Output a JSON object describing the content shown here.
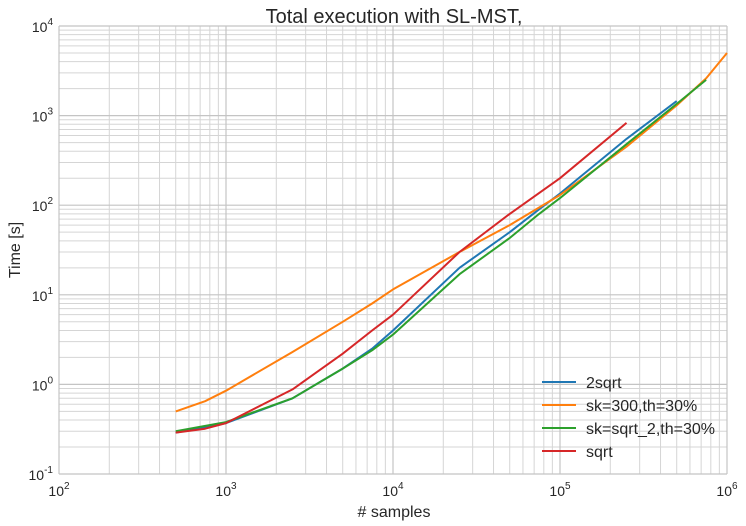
{
  "chart_data": {
    "type": "line",
    "title": "Total execution with SL-MST,",
    "xlabel": "# samples",
    "ylabel": "Time [s]",
    "xscale": "log",
    "yscale": "log",
    "xlim": [
      100,
      1000000
    ],
    "ylim": [
      0.1,
      10000
    ],
    "grid": true,
    "legend_position": "bottom-right",
    "x_ticks": [
      {
        "base": "10",
        "exp": "2",
        "value": 100
      },
      {
        "base": "10",
        "exp": "3",
        "value": 1000
      },
      {
        "base": "10",
        "exp": "4",
        "value": 10000
      },
      {
        "base": "10",
        "exp": "5",
        "value": 100000
      },
      {
        "base": "10",
        "exp": "6",
        "value": 1000000
      }
    ],
    "y_ticks": [
      {
        "base": "10",
        "exp": "-1",
        "value": 0.1
      },
      {
        "base": "10",
        "exp": "0",
        "value": 1
      },
      {
        "base": "10",
        "exp": "1",
        "value": 10
      },
      {
        "base": "10",
        "exp": "2",
        "value": 100
      },
      {
        "base": "10",
        "exp": "3",
        "value": 1000
      },
      {
        "base": "10",
        "exp": "4",
        "value": 10000
      }
    ],
    "series": [
      {
        "name": "2sqrt",
        "color": "#1f77b4",
        "x": [
          500,
          1000,
          2500,
          5000,
          7500,
          10000,
          25000,
          50000,
          75000,
          100000,
          250000,
          500000
        ],
        "y": [
          0.29,
          0.37,
          0.7,
          1.5,
          2.5,
          4.0,
          20,
          50,
          90,
          135,
          550,
          1450
        ]
      },
      {
        "name": "sk=300,th=30%",
        "color": "#ff7f0e",
        "x": [
          500,
          750,
          1000,
          2500,
          5000,
          7500,
          10000,
          25000,
          50000,
          100000,
          250000,
          500000,
          750000,
          1000000
        ],
        "y": [
          0.5,
          0.65,
          0.85,
          2.3,
          5.0,
          8.0,
          11.5,
          30,
          60,
          130,
          450,
          1300,
          2600,
          5000
        ]
      },
      {
        "name": "sk=sqrt_2,th=30%",
        "color": "#2ca02c",
        "x": [
          500,
          1000,
          2500,
          5000,
          7500,
          10000,
          25000,
          50000,
          75000,
          100000,
          250000,
          500000,
          750000
        ],
        "y": [
          0.3,
          0.38,
          0.7,
          1.5,
          2.4,
          3.6,
          17,
          43,
          80,
          120,
          480,
          1350,
          2500
        ]
      },
      {
        "name": "sqrt",
        "color": "#d62728",
        "x": [
          500,
          750,
          1000,
          2500,
          5000,
          7500,
          10000,
          25000,
          50000,
          100000,
          250000
        ],
        "y": [
          0.29,
          0.32,
          0.37,
          0.88,
          2.2,
          4.0,
          6.0,
          30,
          80,
          200,
          830
        ]
      }
    ]
  }
}
